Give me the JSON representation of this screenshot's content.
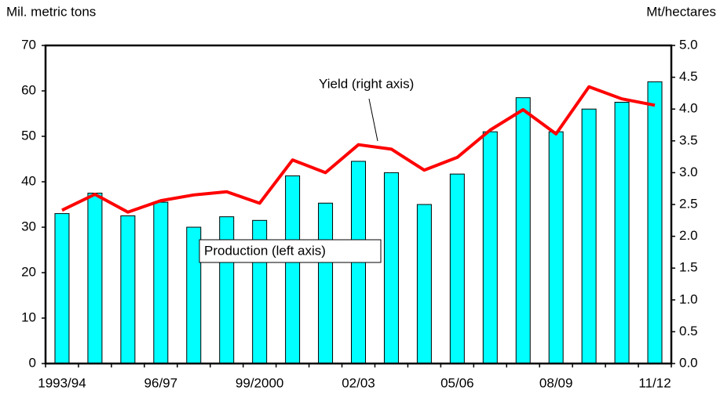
{
  "chart_data": {
    "type": "bar-line",
    "y_label": "Mil. metric tons",
    "y2_label": "Mt/hectares",
    "annotations": [
      "Yield (right axis)",
      "Production (left axis)"
    ],
    "categories": [
      "1993/94",
      null,
      null,
      "96/97",
      null,
      null,
      "99/2000",
      null,
      null,
      "02/03",
      null,
      null,
      "05/06",
      null,
      null,
      "08/09",
      null,
      null,
      "11/12"
    ],
    "series": [
      {
        "name": "Production (left axis)",
        "type": "bar",
        "color": "#00ffff",
        "axis": "y",
        "values": [
          33,
          37.5,
          32.5,
          35.5,
          30,
          32.3,
          31.5,
          41.3,
          35.3,
          44.5,
          42,
          35,
          41.7,
          51,
          58.5,
          51,
          56,
          57.5,
          62
        ]
      },
      {
        "name": "Yield (right axis)",
        "type": "line",
        "color": "#ff0000",
        "axis": "y2",
        "values": [
          2.41,
          2.66,
          2.38,
          2.56,
          2.65,
          2.7,
          2.52,
          3.2,
          3.0,
          3.44,
          3.37,
          3.04,
          3.24,
          3.67,
          3.99,
          3.61,
          4.35,
          4.16,
          4.06
        ]
      }
    ],
    "ylim": [
      0,
      70
    ],
    "yticks": [
      0,
      10,
      20,
      30,
      40,
      50,
      60,
      70
    ],
    "y2lim": [
      0,
      5
    ],
    "y2ticks": [
      {
        "value": 0,
        "label": "0.0"
      },
      0.5,
      {
        "value": 1,
        "label": "1.0"
      },
      1.5,
      {
        "value": 2,
        "label": "2.0"
      },
      2.5,
      {
        "value": 3,
        "label": "3.0"
      },
      3.5,
      {
        "value": 4,
        "label": "4.0"
      },
      4.5,
      {
        "value": 5,
        "label": "5.0"
      }
    ]
  }
}
